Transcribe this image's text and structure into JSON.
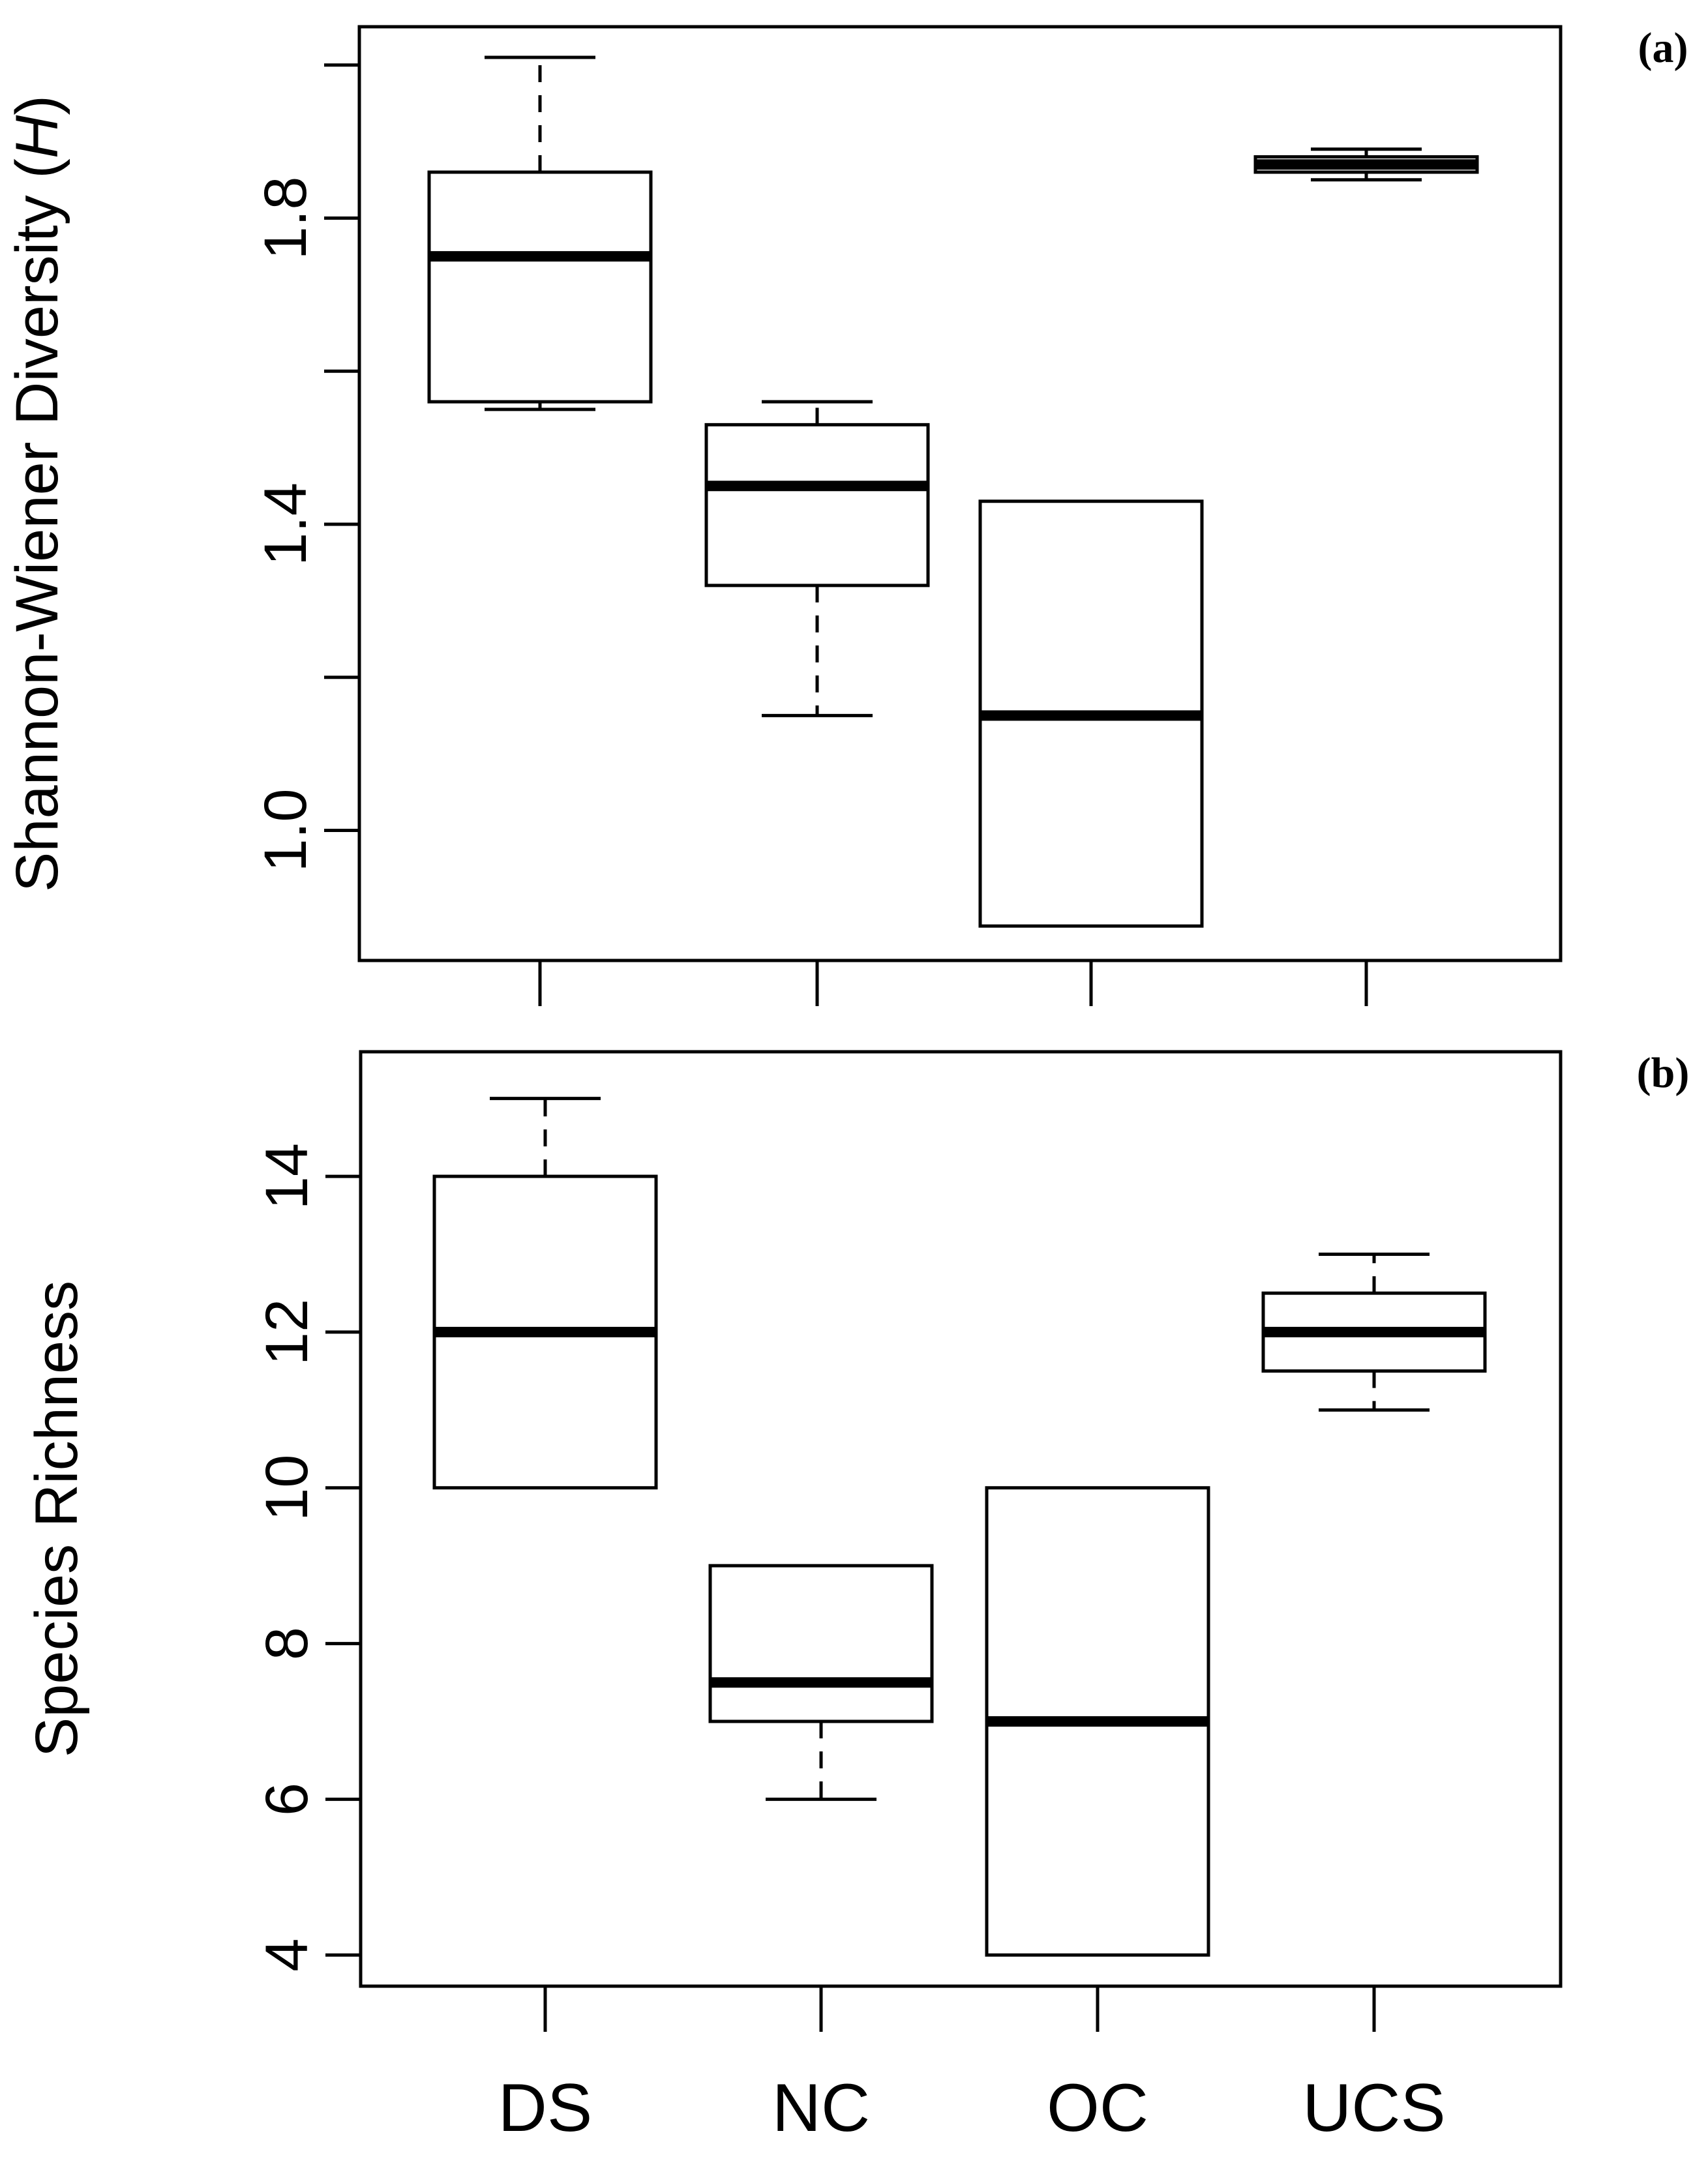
{
  "chart_data": [
    {
      "type": "boxplot",
      "panel_label": "(a)",
      "ylabel": "Shannon-Wiener Diversity (",
      "ylabel_symbol": "H",
      "ylabel_close": ")",
      "ylim": [
        0.83,
        2.05
      ],
      "yticks": [
        1.0,
        1.4,
        1.8
      ],
      "ytick_labels": [
        "1.0",
        "1.4",
        "1.8"
      ],
      "yticks_unlabeled": [
        1.2,
        1.6,
        2.0
      ],
      "categories": [
        "DS",
        "NC",
        "OC",
        "UCS"
      ],
      "boxes": [
        {
          "category": "DS",
          "whisker_low": 1.55,
          "q1": 1.56,
          "median": 1.75,
          "q3": 1.86,
          "whisker_high": 2.01
        },
        {
          "category": "NC",
          "whisker_low": 1.15,
          "q1": 1.32,
          "median": 1.45,
          "q3": 1.53,
          "whisker_high": 1.56
        },
        {
          "category": "OC",
          "whisker_low": 0.875,
          "q1": 0.875,
          "median": 1.15,
          "q3": 1.43,
          "whisker_high": 1.43
        },
        {
          "category": "UCS",
          "whisker_low": 1.85,
          "q1": 1.86,
          "median": 1.87,
          "q3": 1.88,
          "whisker_high": 1.89
        }
      ]
    },
    {
      "type": "boxplot",
      "panel_label": "(b)",
      "ylabel": "Species Richness",
      "ylim": [
        3.6,
        15.6
      ],
      "yticks": [
        4,
        6,
        8,
        10,
        12,
        14
      ],
      "ytick_labels": [
        "4",
        "6",
        "8",
        "10",
        "12",
        "14"
      ],
      "categories": [
        "DS",
        "NC",
        "OC",
        "UCS"
      ],
      "category_labels": [
        "DS",
        "NC",
        "OC",
        "UCS"
      ],
      "boxes": [
        {
          "category": "DS",
          "whisker_low": 10,
          "q1": 10,
          "median": 12,
          "q3": 14,
          "whisker_high": 15
        },
        {
          "category": "NC",
          "whisker_low": 6,
          "q1": 7,
          "median": 7.5,
          "q3": 9,
          "whisker_high": 9
        },
        {
          "category": "OC",
          "whisker_low": 4,
          "q1": 4,
          "median": 7,
          "q3": 10,
          "whisker_high": 10
        },
        {
          "category": "UCS",
          "whisker_low": 11,
          "q1": 11.5,
          "median": 12,
          "q3": 12.5,
          "whisker_high": 13
        }
      ]
    }
  ]
}
